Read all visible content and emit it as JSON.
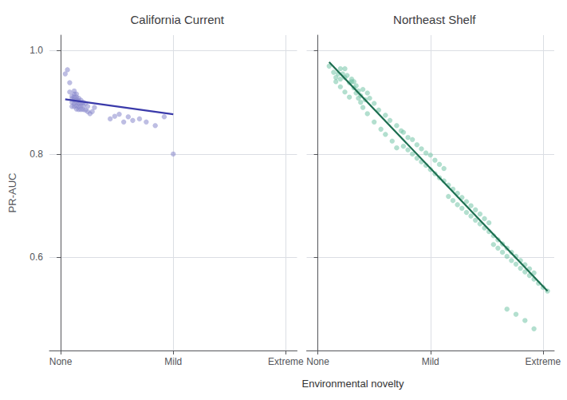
{
  "chart_data": [
    {
      "type": "scatter",
      "title": "California Current",
      "xlabel": "Environmental novelty",
      "ylabel": "PR-AUC",
      "xlim": [
        -0.05,
        1.05
      ],
      "xticks": [
        {
          "value": 0.0,
          "label": "None"
        },
        {
          "value": 0.5,
          "label": "Mild"
        },
        {
          "value": 1.0,
          "label": "Extreme"
        }
      ],
      "ylim": [
        0.42,
        1.03
      ],
      "yticks": [
        0.6,
        0.8,
        {
          "value": 1.0,
          "label": "1.0"
        }
      ],
      "grid": true,
      "series": [
        {
          "type": "scatter",
          "color": "#8888cc",
          "x": [
            0.02,
            0.03,
            0.04,
            0.04,
            0.05,
            0.05,
            0.05,
            0.05,
            0.06,
            0.06,
            0.06,
            0.06,
            0.06,
            0.06,
            0.07,
            0.07,
            0.07,
            0.07,
            0.07,
            0.07,
            0.08,
            0.08,
            0.08,
            0.08,
            0.08,
            0.09,
            0.09,
            0.09,
            0.09,
            0.1,
            0.1,
            0.1,
            0.11,
            0.11,
            0.12,
            0.12,
            0.13,
            0.14,
            0.15,
            0.22,
            0.24,
            0.26,
            0.28,
            0.3,
            0.32,
            0.35,
            0.38,
            0.42,
            0.46,
            0.5
          ],
          "values": [
            0.955,
            0.963,
            0.938,
            0.92,
            0.912,
            0.907,
            0.9,
            0.892,
            0.922,
            0.916,
            0.91,
            0.905,
            0.898,
            0.892,
            0.916,
            0.91,
            0.905,
            0.9,
            0.893,
            0.887,
            0.908,
            0.903,
            0.898,
            0.892,
            0.886,
            0.904,
            0.899,
            0.893,
            0.886,
            0.9,
            0.893,
            0.886,
            0.898,
            0.885,
            0.892,
            0.882,
            0.878,
            0.882,
            0.89,
            0.868,
            0.873,
            0.877,
            0.862,
            0.872,
            0.865,
            0.868,
            0.862,
            0.855,
            0.872,
            0.8
          ]
        },
        {
          "type": "line",
          "color": "#3a3aaa",
          "x": [
            0.02,
            0.5
          ],
          "values": [
            0.906,
            0.877
          ]
        }
      ]
    },
    {
      "type": "scatter",
      "title": "Northeast Shelf",
      "xlim": [
        -0.05,
        1.05
      ],
      "xticks": [
        {
          "value": 0.0,
          "label": "None"
        },
        {
          "value": 0.5,
          "label": "Mild"
        },
        {
          "value": 1.0,
          "label": "Extreme"
        }
      ],
      "ylim": [
        0.42,
        1.03
      ],
      "yticks": [
        0.6,
        0.8,
        1.0
      ],
      "tick_labels": "x",
      "grid": true,
      "series": [
        {
          "type": "scatter",
          "color": "#74c4a8",
          "x": [
            0.05,
            0.07,
            0.08,
            0.09,
            0.1,
            0.1,
            0.11,
            0.12,
            0.12,
            0.13,
            0.14,
            0.15,
            0.16,
            0.17,
            0.18,
            0.19,
            0.2,
            0.21,
            0.22,
            0.23,
            0.25,
            0.27,
            0.3,
            0.32,
            0.35,
            0.37,
            0.08,
            0.1,
            0.12,
            0.14,
            0.15,
            0.16,
            0.17,
            0.18,
            0.19,
            0.2,
            0.22,
            0.25,
            0.28,
            0.3,
            0.33,
            0.35,
            0.38,
            0.4,
            0.42,
            0.44,
            0.46,
            0.48,
            0.5,
            0.52,
            0.54,
            0.56,
            0.38,
            0.4,
            0.42,
            0.44,
            0.46,
            0.48,
            0.5,
            0.52,
            0.54,
            0.56,
            0.58,
            0.6,
            0.62,
            0.64,
            0.66,
            0.68,
            0.7,
            0.72,
            0.74,
            0.76,
            0.58,
            0.6,
            0.62,
            0.64,
            0.66,
            0.68,
            0.7,
            0.72,
            0.74,
            0.76,
            0.78,
            0.8,
            0.82,
            0.84,
            0.86,
            0.88,
            0.9,
            0.92,
            0.94,
            0.96,
            0.78,
            0.8,
            0.82,
            0.84,
            0.86,
            0.88,
            0.9,
            0.92,
            0.94,
            0.96,
            0.98,
            1.0,
            1.02,
            0.84,
            0.88,
            0.92,
            0.96
          ],
          "values": [
            0.97,
            0.958,
            0.948,
            0.955,
            0.965,
            0.945,
            0.955,
            0.948,
            0.965,
            0.952,
            0.938,
            0.945,
            0.94,
            0.932,
            0.922,
            0.913,
            0.925,
            0.905,
            0.918,
            0.908,
            0.898,
            0.885,
            0.875,
            0.865,
            0.855,
            0.845,
            0.94,
            0.93,
            0.92,
            0.91,
            0.94,
            0.928,
            0.918,
            0.908,
            0.9,
            0.89,
            0.878,
            0.862,
            0.848,
            0.838,
            0.825,
            0.812,
            0.842,
            0.832,
            0.828,
            0.818,
            0.81,
            0.802,
            0.798,
            0.788,
            0.78,
            0.772,
            0.815,
            0.808,
            0.8,
            0.792,
            0.785,
            0.778,
            0.77,
            0.762,
            0.754,
            0.748,
            0.74,
            0.732,
            0.724,
            0.716,
            0.708,
            0.7,
            0.692,
            0.684,
            0.675,
            0.667,
            0.718,
            0.71,
            0.702,
            0.695,
            0.687,
            0.68,
            0.672,
            0.665,
            0.657,
            0.65,
            0.642,
            0.634,
            0.626,
            0.618,
            0.61,
            0.602,
            0.594,
            0.586,
            0.578,
            0.57,
            0.625,
            0.618,
            0.61,
            0.602,
            0.594,
            0.587,
            0.579,
            0.572,
            0.565,
            0.558,
            0.55,
            0.542,
            0.535,
            0.5,
            0.49,
            0.478,
            0.462
          ]
        },
        {
          "type": "line",
          "color": "#1c6e50",
          "x": [
            0.05,
            1.02
          ],
          "values": [
            0.978,
            0.535
          ]
        }
      ]
    }
  ]
}
